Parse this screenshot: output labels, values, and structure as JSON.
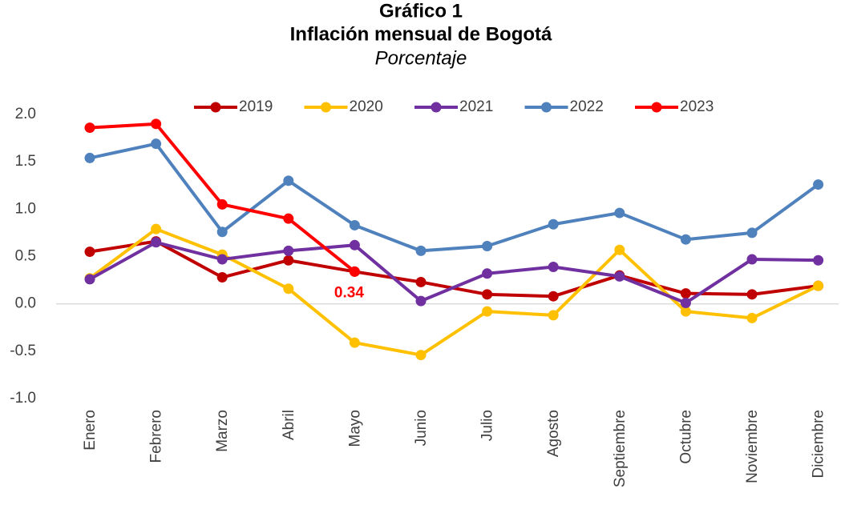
{
  "chart_data": {
    "type": "line",
    "title": "Gráfico 1",
    "subtitle": "Inflación mensual de Bogotá",
    "y_label": "Porcentaje",
    "categories": [
      "Enero",
      "Febrero",
      "Marzo",
      "Abril",
      "Mayo",
      "Junio",
      "Julio",
      "Agosto",
      "Septiembre",
      "Octubre",
      "Noviembre",
      "Diciembre"
    ],
    "series": [
      {
        "name": "2019",
        "color": "#c00000",
        "values": [
          0.55,
          0.66,
          0.28,
          0.46,
          0.34,
          0.23,
          0.1,
          0.08,
          0.3,
          0.11,
          0.1,
          0.19
        ]
      },
      {
        "name": "2020",
        "color": "#ffc000",
        "values": [
          0.27,
          0.79,
          0.52,
          0.16,
          -0.41,
          -0.54,
          -0.08,
          -0.12,
          0.57,
          -0.08,
          -0.15,
          0.19
        ]
      },
      {
        "name": "2021",
        "color": "#7030a0",
        "values": [
          0.26,
          0.65,
          0.47,
          0.56,
          0.62,
          0.03,
          0.32,
          0.39,
          0.29,
          0.01,
          0.47,
          0.46
        ]
      },
      {
        "name": "2022",
        "color": "#4f81bd",
        "values": [
          1.54,
          1.69,
          0.76,
          1.3,
          0.83,
          0.56,
          0.61,
          0.84,
          0.96,
          0.68,
          0.75,
          1.26
        ]
      },
      {
        "name": "2023",
        "color": "#ff0000",
        "values": [
          1.86,
          1.9,
          1.05,
          0.9,
          0.34,
          null,
          null,
          null,
          null,
          null,
          null,
          null
        ],
        "value_labels": [
          null,
          null,
          null,
          null,
          "0.34",
          null,
          null,
          null,
          null,
          null,
          null,
          null
        ]
      }
    ],
    "ylim": [
      -1.0,
      2.0
    ],
    "yticks": [
      {
        "value": -1.0,
        "label": "-1.0"
      },
      -0.5,
      {
        "value": 0,
        "label": "0.0"
      },
      0.5,
      {
        "value": 1.0,
        "label": "1.0"
      },
      1.5,
      {
        "value": 2.0,
        "label": "2.0"
      }
    ],
    "grid": false,
    "legend": "top"
  }
}
